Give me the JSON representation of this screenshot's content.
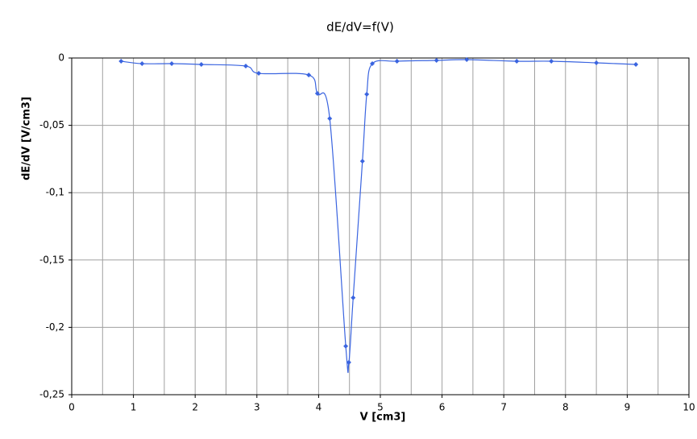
{
  "chart_data": {
    "type": "line",
    "title": "dE/dV=f(V)",
    "x_label": "V [cm3]",
    "y_label": "dE/dV [V/cm3]",
    "series": [
      {
        "color": "#3a64e0",
        "x": [
          0.8,
          1.14,
          1.62,
          2.1,
          2.82,
          3.03,
          3.84,
          3.98,
          4.18,
          4.44,
          4.49,
          4.56,
          4.71,
          4.78,
          4.87,
          5.27,
          5.91,
          6.4,
          7.21,
          7.77,
          8.5,
          9.14
        ],
        "values": [
          -0.0024,
          -0.0042,
          -0.0042,
          -0.0048,
          -0.006,
          -0.0114,
          -0.0126,
          -0.0263,
          -0.0449,
          -0.214,
          -0.226,
          -0.178,
          -0.0766,
          -0.0269,
          -0.0042,
          -0.0024,
          -0.0018,
          -0.0012,
          -0.0024,
          -0.0024,
          -0.0036,
          -0.0048
        ]
      }
    ],
    "xlim": [
      0,
      10
    ],
    "ylim": [
      -0.25,
      0
    ],
    "xticks": [
      0,
      1,
      2,
      3,
      4,
      5,
      6,
      7,
      8,
      9,
      10
    ],
    "x_minor_grid": [
      0.5,
      1.5,
      2.5,
      3.5,
      4.5,
      5.5,
      6.5,
      7.5,
      8.5,
      9.5
    ],
    "yticks": [
      {
        "value": 0,
        "label": "0"
      },
      {
        "value": -0.05,
        "label": "-0,05"
      },
      {
        "value": -0.1,
        "label": "-0,1"
      },
      {
        "value": -0.15,
        "label": "-0,15"
      },
      {
        "value": -0.2,
        "label": "-0,2"
      },
      {
        "value": -0.25,
        "label": "-0,25"
      }
    ],
    "grid": true
  }
}
